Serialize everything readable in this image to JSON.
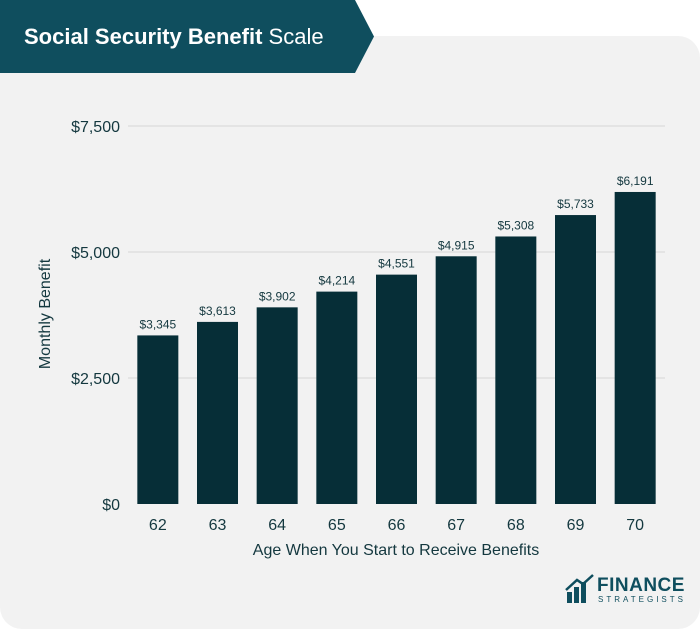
{
  "header": {
    "title_bold": "Social Security Benefit",
    "title_light": "Scale"
  },
  "logo": {
    "name": "FINANCE",
    "sub": "STRATEGISTS"
  },
  "colors": {
    "banner": "#0f4e5e",
    "bar": "#062e37",
    "text": "#14383f",
    "grid": "#d6d6d6"
  },
  "chart_data": {
    "type": "bar",
    "categories": [
      "62",
      "63",
      "64",
      "65",
      "66",
      "67",
      "68",
      "69",
      "70"
    ],
    "values": [
      3345,
      3613,
      3902,
      4214,
      4551,
      4915,
      5308,
      5733,
      6191
    ],
    "data_labels": [
      "$3,345",
      "$3,613",
      "$3,902",
      "$4,214",
      "$4,551",
      "$4,915",
      "$5,308",
      "$5,733",
      "$6,191"
    ],
    "xlabel": "Age When You Start to Receive Benefits",
    "ylabel": "Monthly Benefit",
    "ylim": [
      0,
      7500
    ],
    "yticks": [
      0,
      2500,
      5000,
      7500
    ],
    "ytick_labels": [
      "$0",
      "$2,500",
      "$5,000",
      "$7,500"
    ],
    "grid": true
  }
}
